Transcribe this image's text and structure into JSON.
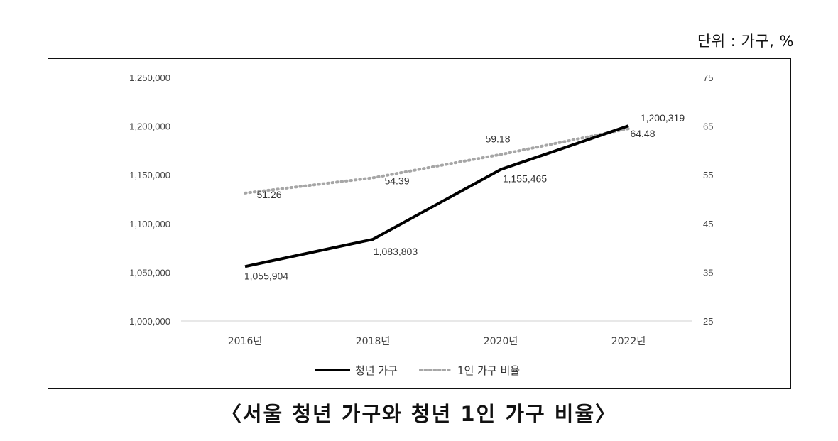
{
  "unit_label": "단위 : 가구, %",
  "caption": "〈서울 청년 가구와 청년 1인 가구 비율〉",
  "chart_data": {
    "type": "line",
    "categories": [
      "2016년",
      "2018년",
      "2020년",
      "2022년"
    ],
    "y_left": {
      "ticks": [
        "1,000,000",
        "1,050,000",
        "1,100,000",
        "1,150,000",
        "1,200,000",
        "1,250,000"
      ],
      "ylim": [
        1000000,
        1250000
      ]
    },
    "y_right": {
      "ticks": [
        "25",
        "35",
        "45",
        "55",
        "65",
        "75"
      ],
      "ylim": [
        25,
        75
      ]
    },
    "series": [
      {
        "name": "청년 가구",
        "axis": "left",
        "values": [
          1055904,
          1083803,
          1155465,
          1200319
        ],
        "labels": [
          "1,055,904",
          "1,083,803",
          "1,155,465",
          "1,200,319"
        ],
        "color": "#000000",
        "style": "solid"
      },
      {
        "name": "1인 가구 비율",
        "axis": "right",
        "values": [
          51.26,
          54.39,
          59.18,
          64.48
        ],
        "labels": [
          "51.26",
          "54.39",
          "59.18",
          "64.48"
        ],
        "color": "#a6a6a6",
        "style": "dotted"
      }
    ],
    "grid": false,
    "legend_position": "bottom"
  }
}
